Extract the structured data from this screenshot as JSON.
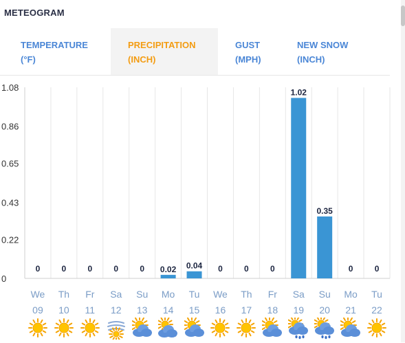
{
  "header": {
    "title": "METEOGRAM"
  },
  "tabs": [
    {
      "line1": "TEMPERATURE",
      "line2": "(°F)",
      "active": false
    },
    {
      "line1": "PRECIPITATION",
      "line2": "(INCH)",
      "active": true
    },
    {
      "line1": "GUST",
      "line2": "(MPH)",
      "active": false
    },
    {
      "line1": "NEW SNOW",
      "line2": "(INCH)",
      "active": false
    }
  ],
  "colors": {
    "bar": "#3a95d4",
    "tab_active": "#f39c12",
    "tab_link": "#4a86d6",
    "axis_text": "#333333",
    "day_text": "#7a9cc6"
  },
  "chart_data": {
    "type": "bar",
    "categories": [
      "We 09",
      "Th 10",
      "Fr 11",
      "Sa 12",
      "Su 13",
      "Mo 14",
      "Tu 15",
      "We 16",
      "Th 17",
      "Fr 18",
      "Sa 19",
      "Su 20",
      "Mo 21",
      "Tu 22"
    ],
    "days": [
      "We",
      "Th",
      "Fr",
      "Sa",
      "Su",
      "Mo",
      "Tu",
      "We",
      "Th",
      "Fr",
      "Sa",
      "Su",
      "Mo",
      "Tu"
    ],
    "dates": [
      "09",
      "10",
      "11",
      "12",
      "13",
      "14",
      "15",
      "16",
      "17",
      "18",
      "19",
      "20",
      "21",
      "22"
    ],
    "values": [
      0,
      0,
      0,
      0,
      0,
      0.02,
      0.04,
      0,
      0,
      0,
      1.02,
      0.35,
      0,
      0
    ],
    "value_labels": [
      "0",
      "0",
      "0",
      "0",
      "0",
      "0.02",
      "0.04",
      "0",
      "0",
      "0",
      "1.02",
      "0.35",
      "0",
      "0"
    ],
    "yticks": [
      "1.08",
      "0.86",
      "0.65",
      "0.43",
      "0.22",
      "0"
    ],
    "ylim": [
      0,
      1.08
    ],
    "ylabel": "",
    "grid": true
  },
  "weather_icons": [
    "sun",
    "sun",
    "sun",
    "fog",
    "partly-cloudy",
    "cloudy",
    "partly-cloudy",
    "sun",
    "sun",
    "partly-cloudy",
    "rain-cloud",
    "rain-cloud",
    "partly-cloudy",
    "sun"
  ]
}
